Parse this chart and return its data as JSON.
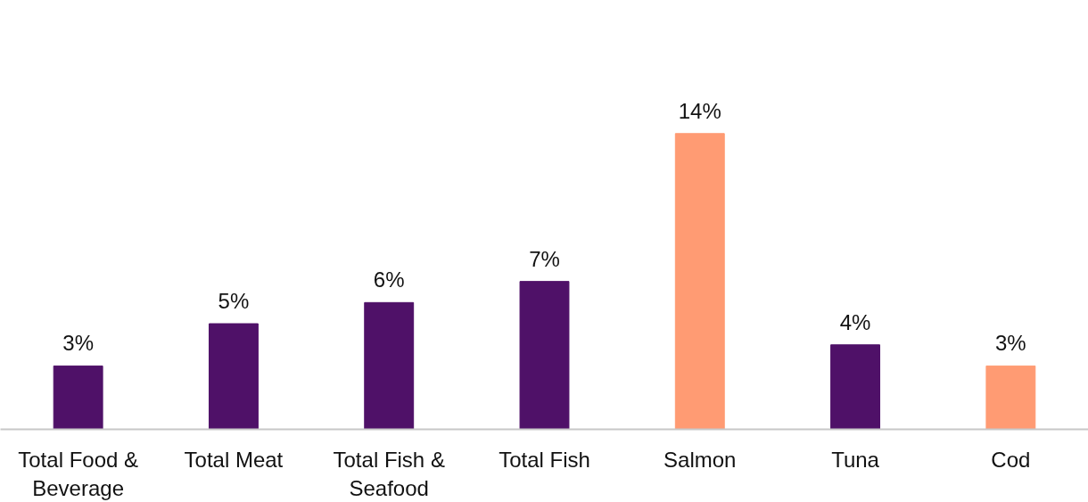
{
  "chart_data": {
    "type": "bar",
    "categories": [
      "Total Food & Beverage",
      "Total Meat",
      "Total Fish & Seafood",
      "Total Fish",
      "Salmon",
      "Tuna",
      "Cod"
    ],
    "values": [
      3,
      5,
      6,
      7,
      14,
      4,
      3
    ],
    "value_labels": [
      "3%",
      "5%",
      "6%",
      "7%",
      "14%",
      "4%",
      "3%"
    ],
    "colors": [
      "#4f1168",
      "#4f1168",
      "#4f1168",
      "#4f1168",
      "#ff9b73",
      "#4f1168",
      "#ff9b73"
    ],
    "tick_labels": "x",
    "grid": false
  }
}
